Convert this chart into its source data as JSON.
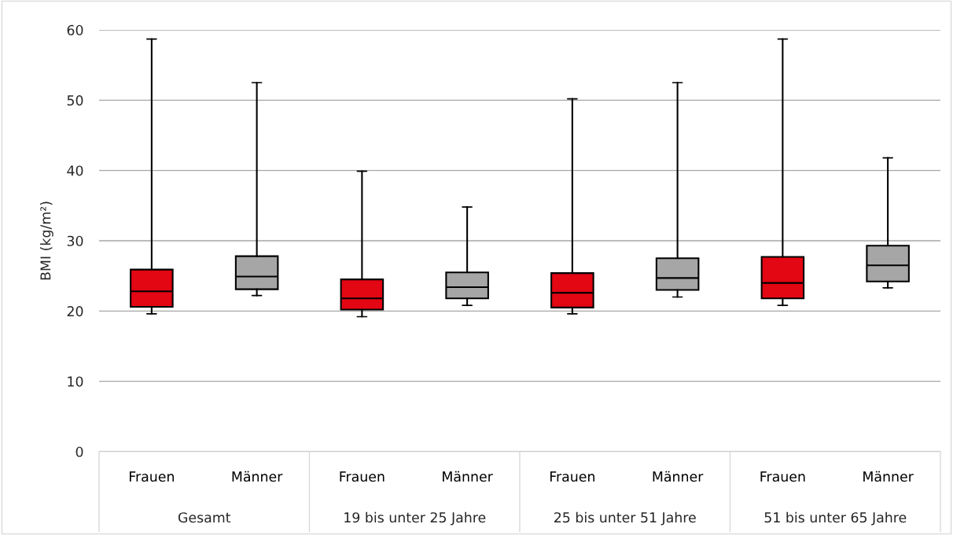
{
  "chart_data": {
    "type": "box",
    "ylabel": "BMI (kg/m²)",
    "categories": [
      "Frauen",
      "Männer",
      "Frauen",
      "Männer",
      "Frauen",
      "Männer",
      "Frauen",
      "Männer"
    ],
    "colors": [
      "#e30613",
      "#a6a6a6",
      "#e30613",
      "#a6a6a6",
      "#e30613",
      "#a6a6a6",
      "#e30613",
      "#a6a6a6"
    ],
    "boxes": [
      {
        "low": 19.6,
        "q1": 20.6,
        "median": 22.8,
        "q3": 25.9,
        "high": 58.7
      },
      {
        "low": 22.2,
        "q1": 23.1,
        "median": 24.9,
        "q3": 27.8,
        "high": 52.5
      },
      {
        "low": 19.2,
        "q1": 20.2,
        "median": 21.8,
        "q3": 24.5,
        "high": 39.9
      },
      {
        "low": 20.8,
        "q1": 21.8,
        "median": 23.4,
        "q3": 25.5,
        "high": 34.8
      },
      {
        "low": 19.6,
        "q1": 20.5,
        "median": 22.6,
        "q3": 25.4,
        "high": 50.2
      },
      {
        "low": 22.0,
        "q1": 23.0,
        "median": 24.7,
        "q3": 27.5,
        "high": 52.5
      },
      {
        "low": 20.8,
        "q1": 21.8,
        "median": 24.0,
        "q3": 27.7,
        "high": 58.7
      },
      {
        "low": 23.3,
        "q1": 24.2,
        "median": 26.5,
        "q3": 29.3,
        "high": 41.8
      }
    ],
    "annotations": [
      "Gesamt",
      "19 bis unter 25 Jahre",
      "25 bis unter 51 Jahre",
      "51 bis unter 65 Jahre"
    ],
    "ylim": [
      0,
      60
    ],
    "yticks": [
      0,
      10,
      20,
      30,
      40,
      50,
      60
    ],
    "grid": "y"
  }
}
